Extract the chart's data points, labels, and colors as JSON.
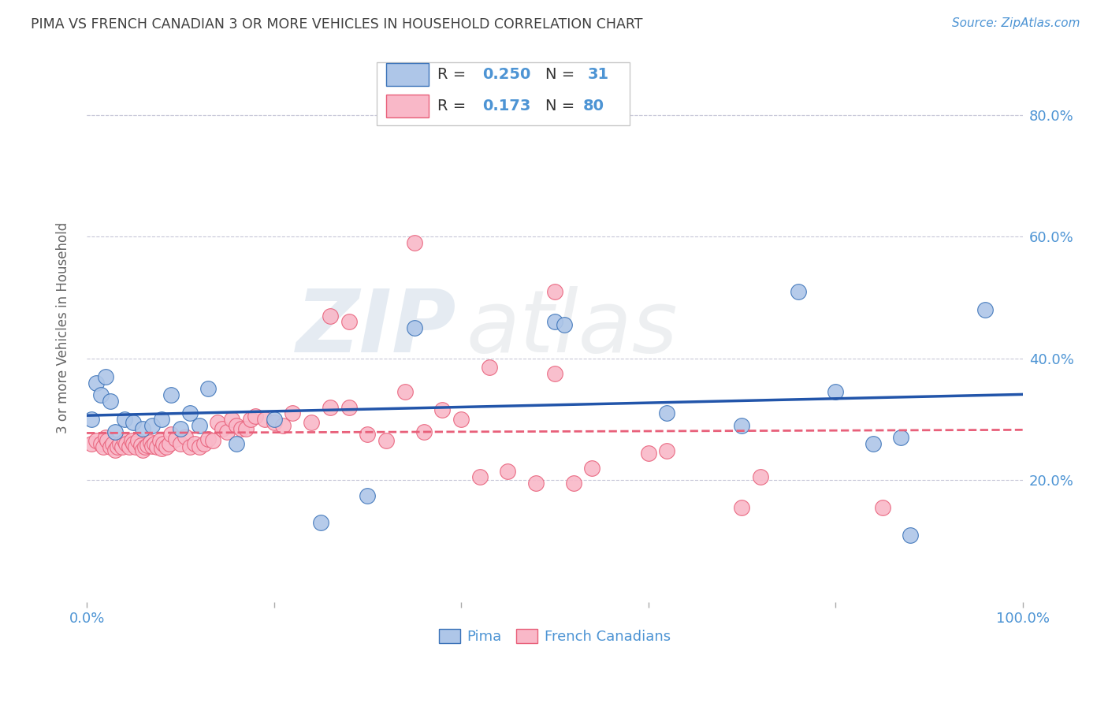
{
  "title": "PIMA VS FRENCH CANADIAN 3 OR MORE VEHICLES IN HOUSEHOLD CORRELATION CHART",
  "source": "Source: ZipAtlas.com",
  "ylabel": "3 or more Vehicles in Household",
  "xlim": [
    0,
    1.0
  ],
  "ylim": [
    0,
    0.9
  ],
  "x_tick_labels": [
    "0.0%",
    "100.0%"
  ],
  "y_tick_labels": [
    "20.0%",
    "40.0%",
    "60.0%",
    "80.0%"
  ],
  "y_tick_values": [
    0.2,
    0.4,
    0.6,
    0.8
  ],
  "watermark_zip": "ZIP",
  "watermark_atlas": "atlas",
  "legend_pima_R": "0.250",
  "legend_pima_N": "31",
  "legend_fc_R": "0.173",
  "legend_fc_N": "80",
  "pima_color": "#aec6e8",
  "fc_color": "#f9b8c8",
  "pima_edge_color": "#3a72b8",
  "fc_edge_color": "#e8607a",
  "pima_line_color": "#2255aa",
  "fc_line_color": "#e8607a",
  "title_color": "#404040",
  "axis_color": "#4d94d4",
  "grid_color": "#c8c8d8",
  "pima_x": [
    0.005,
    0.01,
    0.015,
    0.02,
    0.025,
    0.03,
    0.04,
    0.05,
    0.06,
    0.07,
    0.08,
    0.09,
    0.1,
    0.11,
    0.12,
    0.13,
    0.16,
    0.2,
    0.25,
    0.3,
    0.35,
    0.5,
    0.51,
    0.62,
    0.7,
    0.76,
    0.8,
    0.84,
    0.87,
    0.88,
    0.96
  ],
  "pima_y": [
    0.3,
    0.36,
    0.34,
    0.37,
    0.33,
    0.28,
    0.3,
    0.295,
    0.285,
    0.29,
    0.3,
    0.34,
    0.285,
    0.31,
    0.29,
    0.35,
    0.26,
    0.3,
    0.13,
    0.175,
    0.45,
    0.46,
    0.455,
    0.31,
    0.29,
    0.51,
    0.345,
    0.26,
    0.27,
    0.11,
    0.48
  ],
  "fc_x": [
    0.005,
    0.01,
    0.015,
    0.018,
    0.02,
    0.022,
    0.025,
    0.028,
    0.03,
    0.033,
    0.035,
    0.038,
    0.04,
    0.042,
    0.045,
    0.048,
    0.05,
    0.052,
    0.055,
    0.058,
    0.06,
    0.062,
    0.065,
    0.068,
    0.07,
    0.072,
    0.075,
    0.078,
    0.08,
    0.082,
    0.085,
    0.088,
    0.09,
    0.095,
    0.1,
    0.105,
    0.11,
    0.115,
    0.12,
    0.125,
    0.13,
    0.135,
    0.14,
    0.145,
    0.15,
    0.155,
    0.16,
    0.165,
    0.17,
    0.175,
    0.18,
    0.19,
    0.2,
    0.21,
    0.22,
    0.24,
    0.26,
    0.28,
    0.3,
    0.32,
    0.34,
    0.36,
    0.38,
    0.4,
    0.42,
    0.45,
    0.48,
    0.5,
    0.52,
    0.54,
    0.6,
    0.62,
    0.7,
    0.72,
    0.85,
    0.5,
    0.35,
    0.26,
    0.28,
    0.43
  ],
  "fc_y": [
    0.26,
    0.265,
    0.26,
    0.255,
    0.27,
    0.265,
    0.255,
    0.26,
    0.25,
    0.255,
    0.26,
    0.255,
    0.265,
    0.26,
    0.255,
    0.265,
    0.26,
    0.255,
    0.265,
    0.258,
    0.25,
    0.255,
    0.258,
    0.262,
    0.256,
    0.26,
    0.255,
    0.265,
    0.252,
    0.26,
    0.255,
    0.26,
    0.275,
    0.268,
    0.26,
    0.272,
    0.255,
    0.26,
    0.255,
    0.26,
    0.268,
    0.265,
    0.295,
    0.285,
    0.28,
    0.3,
    0.29,
    0.285,
    0.285,
    0.3,
    0.305,
    0.3,
    0.295,
    0.29,
    0.31,
    0.295,
    0.32,
    0.32,
    0.275,
    0.265,
    0.345,
    0.28,
    0.315,
    0.3,
    0.205,
    0.215,
    0.195,
    0.375,
    0.195,
    0.22,
    0.245,
    0.248,
    0.155,
    0.205,
    0.155,
    0.51,
    0.59,
    0.47,
    0.46,
    0.385
  ]
}
